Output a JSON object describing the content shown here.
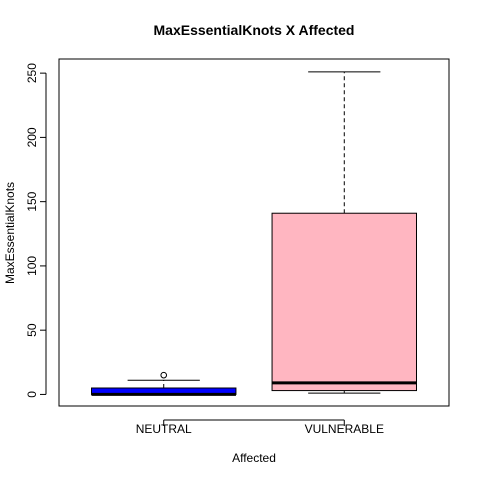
{
  "chart_data": {
    "type": "boxplot",
    "title": "MaxEssentialKnots X Affected",
    "xlabel": "Affected",
    "ylabel": "MaxEssentialKnots",
    "ylim": [
      -9,
      261
    ],
    "yticks": [
      0,
      50,
      100,
      150,
      200,
      250
    ],
    "ytick_labels": [
      "0",
      "50",
      "100",
      "150",
      "200",
      "250"
    ],
    "categories": [
      "NEUTRAL",
      "VULNERABLE"
    ],
    "boxes": [
      {
        "category": "NEUTRAL",
        "fill": "#0000ff",
        "whisker_low": 0,
        "q1": 0,
        "median": 0,
        "q3": 5,
        "whisker_high": 11,
        "outliers": [
          15
        ]
      },
      {
        "category": "VULNERABLE",
        "fill": "#ffb6c1",
        "whisker_low": 1,
        "q1": 3,
        "median": 9,
        "q3": 141,
        "whisker_high": 251,
        "outliers": []
      }
    ],
    "grid": false,
    "legend": "none"
  }
}
